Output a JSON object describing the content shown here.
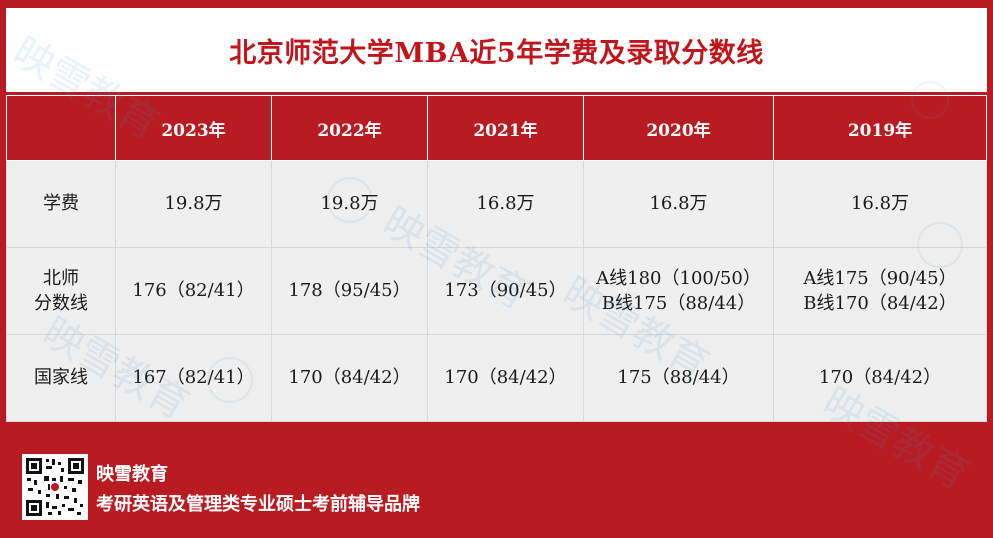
{
  "title": "北京师范大学MBA近5年学费及录取分数线",
  "table": {
    "headers": [
      "",
      "2023年",
      "2022年",
      "2021年",
      "2020年",
      "2019年"
    ],
    "rows": [
      {
        "label_lines": [
          "学费"
        ],
        "cells": [
          [
            "19.8万"
          ],
          [
            "19.8万"
          ],
          [
            "16.8万"
          ],
          [
            "16.8万"
          ],
          [
            "16.8万"
          ]
        ]
      },
      {
        "label_lines": [
          "北师",
          "分数线"
        ],
        "cells": [
          [
            "176（82/41）"
          ],
          [
            "178（95/45）"
          ],
          [
            "173（90/45）"
          ],
          [
            "A线180（100/50）",
            "B线175（88/44）"
          ],
          [
            "A线175（90/45）",
            "B线170（84/42）"
          ]
        ]
      },
      {
        "label_lines": [
          "国家线"
        ],
        "cells": [
          [
            "167（82/41）"
          ],
          [
            "170（84/42）"
          ],
          [
            "170（84/42）"
          ],
          [
            "175（88/44）"
          ],
          [
            "170（84/42）"
          ]
        ]
      }
    ]
  },
  "footer": {
    "brand": "映雪教育",
    "slogan": "考研英语及管理类专业硕士考前辅导品牌",
    "qr_icon": "qr-code-icon"
  },
  "watermark": "映雪教育",
  "colors": {
    "brand_red": "#b81c22",
    "title_red": "#c0151c",
    "cell_bg": "#efefef"
  }
}
